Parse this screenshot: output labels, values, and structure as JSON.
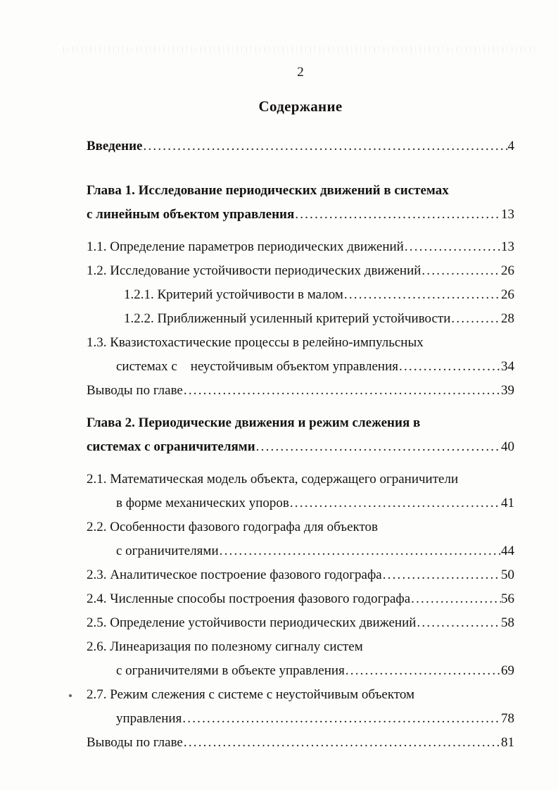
{
  "page": {
    "number": "2",
    "title": "Содержание"
  },
  "toc": {
    "entries": [
      {
        "bold": true,
        "gap": null,
        "page_ref": "4",
        "lines": [
          {
            "text": "Введение",
            "indent": 0
          }
        ]
      },
      {
        "bold": true,
        "gap": "lg",
        "page_ref": "13",
        "lines": [
          {
            "text": "Глава 1. Исследование периодических движений в системах",
            "indent": 0
          },
          {
            "text": "с линейным объектом управления",
            "indent": 0
          }
        ]
      },
      {
        "bold": false,
        "gap": "md",
        "page_ref": "13",
        "lines": [
          {
            "text": "1.1. Определение параметров периодических движений",
            "indent": 0
          }
        ]
      },
      {
        "bold": false,
        "gap": null,
        "page_ref": "26",
        "lines": [
          {
            "text": "1.2. Исследование устойчивости периодических движений",
            "indent": 0
          }
        ]
      },
      {
        "bold": false,
        "gap": null,
        "page_ref": "26",
        "lines": [
          {
            "text": "1.2.1. Критерий устойчивости в малом",
            "indent": 2
          }
        ]
      },
      {
        "bold": false,
        "gap": null,
        "page_ref": "28",
        "lines": [
          {
            "text": "1.2.2. Приближенный усиленный критерий устойчивости",
            "indent": 2
          }
        ]
      },
      {
        "bold": false,
        "gap": null,
        "page_ref": "34",
        "lines": [
          {
            "text": "1.3. Квазистохастические процессы в релейно-импульсных",
            "indent": 0
          },
          {
            "text": "системах с    неустойчивым объектом управления",
            "indent": 1
          }
        ]
      },
      {
        "bold": false,
        "gap": null,
        "page_ref": "39",
        "lines": [
          {
            "text": "Выводы по главе",
            "indent": 0
          }
        ]
      },
      {
        "bold": true,
        "gap": "md",
        "page_ref": "40",
        "lines": [
          {
            "text": "Глава 2. Периодические движения и режим слежения в",
            "indent": 0
          },
          {
            "text": "системах с ограничителями",
            "indent": 0
          }
        ]
      },
      {
        "bold": false,
        "gap": "md",
        "page_ref": "41",
        "lines": [
          {
            "text": "2.1. Математическая модель объекта, содержащего ограничители",
            "indent": 0
          },
          {
            "text": "в форме механических упоров",
            "indent": 1
          }
        ]
      },
      {
        "bold": false,
        "gap": null,
        "page_ref": "44",
        "lines": [
          {
            "text": "2.2. Особенности фазового годографа для объектов",
            "indent": 0
          },
          {
            "text": "с ограничителями",
            "indent": 1
          }
        ]
      },
      {
        "bold": false,
        "gap": null,
        "page_ref": "50",
        "lines": [
          {
            "text": "2.3. Аналитическое построение фазового годографа",
            "indent": 0
          }
        ]
      },
      {
        "bold": false,
        "gap": null,
        "page_ref": "56",
        "lines": [
          {
            "text": "2.4. Численные способы построения фазового годографа",
            "indent": 0
          }
        ]
      },
      {
        "bold": false,
        "gap": null,
        "page_ref": "58",
        "lines": [
          {
            "text": "2.5. Определение устойчивости периодических движений",
            "indent": 0
          }
        ]
      },
      {
        "bold": false,
        "gap": null,
        "page_ref": "69",
        "lines": [
          {
            "text": "2.6. Линеаризация по полезному сигналу систем",
            "indent": 0
          },
          {
            "text": "с ограничителями в объекте управления",
            "indent": 1
          }
        ]
      },
      {
        "bold": false,
        "gap": null,
        "page_ref": "78",
        "lines": [
          {
            "text": "2.7. Режим слежения с системе с неустойчивым объектом",
            "indent": 0
          },
          {
            "text": "управления",
            "indent": 1
          }
        ]
      },
      {
        "bold": false,
        "gap": null,
        "page_ref": "81",
        "lines": [
          {
            "text": "Выводы по главе",
            "indent": 0
          }
        ]
      }
    ]
  }
}
